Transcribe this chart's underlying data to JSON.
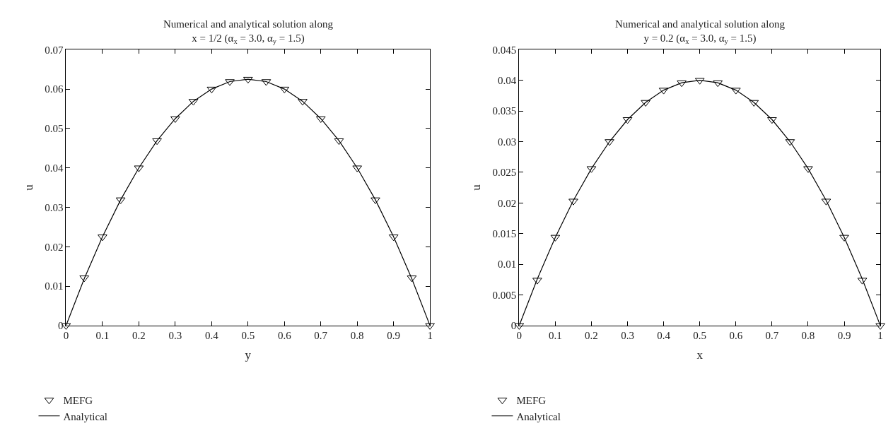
{
  "chart_data": [
    {
      "type": "line",
      "title": "Numerical and analytical solution along\nx = 1/2 (α$_{x}$ = 3.0, α$_{y}$ = 1.5)",
      "xlabel": "y",
      "ylabel": "u",
      "xlim": [
        0,
        1
      ],
      "xticks": [
        0,
        0.1,
        0.2,
        0.3,
        0.4,
        0.5,
        0.6,
        0.7,
        0.8,
        0.9,
        1
      ],
      "ylim": [
        0,
        0.07
      ],
      "yticks": [
        0,
        0.01,
        0.02,
        0.03,
        0.04,
        0.05,
        0.06,
        0.07
      ],
      "legend": "bottom left",
      "x": [
        0,
        0.05,
        0.1,
        0.15,
        0.2,
        0.25,
        0.3,
        0.35,
        0.4,
        0.45,
        0.5,
        0.55,
        0.6,
        0.65,
        0.7,
        0.75,
        0.8,
        0.85,
        0.9,
        0.95,
        1
      ],
      "series": [
        {
          "name": "MEFG",
          "type": "scatter",
          "marker": "triangle",
          "color": "#000000",
          "values": [
            0,
            0.0121,
            0.0225,
            0.0319,
            0.04,
            0.0469,
            0.0525,
            0.0569,
            0.06,
            0.0619,
            0.0625,
            0.0619,
            0.06,
            0.0569,
            0.0525,
            0.0469,
            0.04,
            0.0319,
            0.0225,
            0.0121,
            0
          ]
        },
        {
          "name": "Analytical",
          "marker": "none",
          "line_style": "solid",
          "color": "#000000",
          "values": [
            0,
            0.0119,
            0.0225,
            0.0319,
            0.04,
            0.0469,
            0.0525,
            0.0569,
            0.06,
            0.0619,
            0.0625,
            0.0619,
            0.06,
            0.0569,
            0.0525,
            0.0469,
            0.04,
            0.0319,
            0.0225,
            0.0119,
            0
          ]
        }
      ]
    },
    {
      "type": "line",
      "title": "Numerical and analytical solution along\ny = 0.2 (α$_{x}$ = 3.0, α$_{y}$ = 1.5)",
      "xlabel": "x",
      "ylabel": "u",
      "xlim": [
        0,
        1
      ],
      "xticks": [
        0,
        0.1,
        0.2,
        0.3,
        0.4,
        0.5,
        0.6,
        0.7,
        0.8,
        0.9,
        1
      ],
      "ylim": [
        0,
        0.045
      ],
      "yticks": [
        0,
        0.005,
        0.01,
        0.015,
        0.02,
        0.025,
        0.03,
        0.035,
        0.04,
        0.045
      ],
      "legend": "bottom left",
      "x": [
        0,
        0.05,
        0.1,
        0.15,
        0.2,
        0.25,
        0.3,
        0.35,
        0.4,
        0.45,
        0.5,
        0.55,
        0.6,
        0.65,
        0.7,
        0.75,
        0.8,
        0.85,
        0.9,
        0.95,
        1
      ],
      "series": [
        {
          "name": "MEFG",
          "type": "scatter",
          "marker": "triangle",
          "color": "#000000",
          "values": [
            0,
            0.0074,
            0.0144,
            0.0203,
            0.0256,
            0.03,
            0.0336,
            0.0364,
            0.0384,
            0.0396,
            0.04,
            0.0396,
            0.0384,
            0.0364,
            0.0336,
            0.03,
            0.0256,
            0.0203,
            0.0144,
            0.0074,
            0
          ]
        },
        {
          "name": "Analytical",
          "marker": "none",
          "line_style": "solid",
          "color": "#000000",
          "values": [
            0,
            0.0076,
            0.0144,
            0.0204,
            0.0256,
            0.03,
            0.0336,
            0.0364,
            0.0384,
            0.0396,
            0.04,
            0.0396,
            0.0384,
            0.0364,
            0.0336,
            0.03,
            0.0256,
            0.0204,
            0.0144,
            0.0076,
            0
          ]
        }
      ]
    }
  ]
}
